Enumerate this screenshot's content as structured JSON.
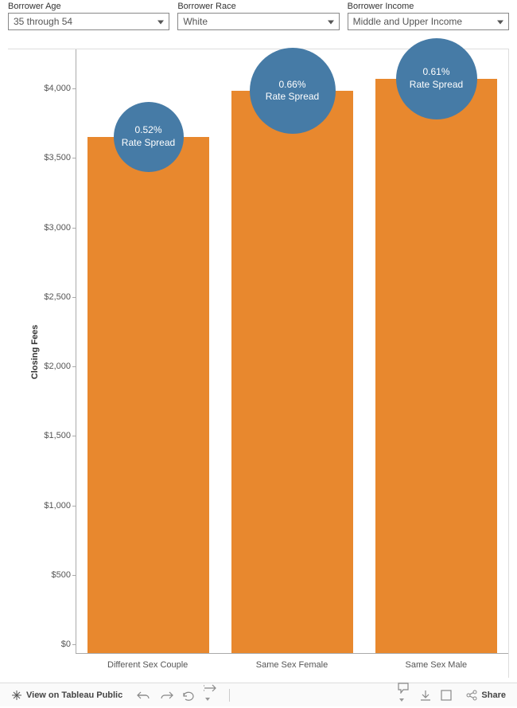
{
  "filters": [
    {
      "label": "Borrower Age",
      "value": "35 through 54"
    },
    {
      "label": "Borrower Race",
      "value": "White"
    },
    {
      "label": "Borrower Income",
      "value": "Middle and Upper Income"
    }
  ],
  "chart": {
    "type": "bar",
    "ylabel": "Closing Fees",
    "ylim_max": 4350,
    "ytick_step": 500,
    "ytick_prefix": "$",
    "bar_color": "#e8882e",
    "bubble_color": "#467ba6",
    "background_color": "#ffffff",
    "categories": [
      {
        "label": "Different Sex Couple",
        "value": 3720,
        "bubble_size": 88,
        "spread": "0.52%",
        "spread_label": "Rate Spread"
      },
      {
        "label": "Same Sex Female",
        "value": 4050,
        "bubble_size": 108,
        "spread": "0.66%",
        "spread_label": "Rate Spread"
      },
      {
        "label": "Same Sex Male",
        "value": 4140,
        "bubble_size": 102,
        "spread": "0.61%",
        "spread_label": "Rate Spread"
      }
    ]
  },
  "toolbar": {
    "view_label": "View on Tableau Public",
    "share_label": "Share"
  }
}
